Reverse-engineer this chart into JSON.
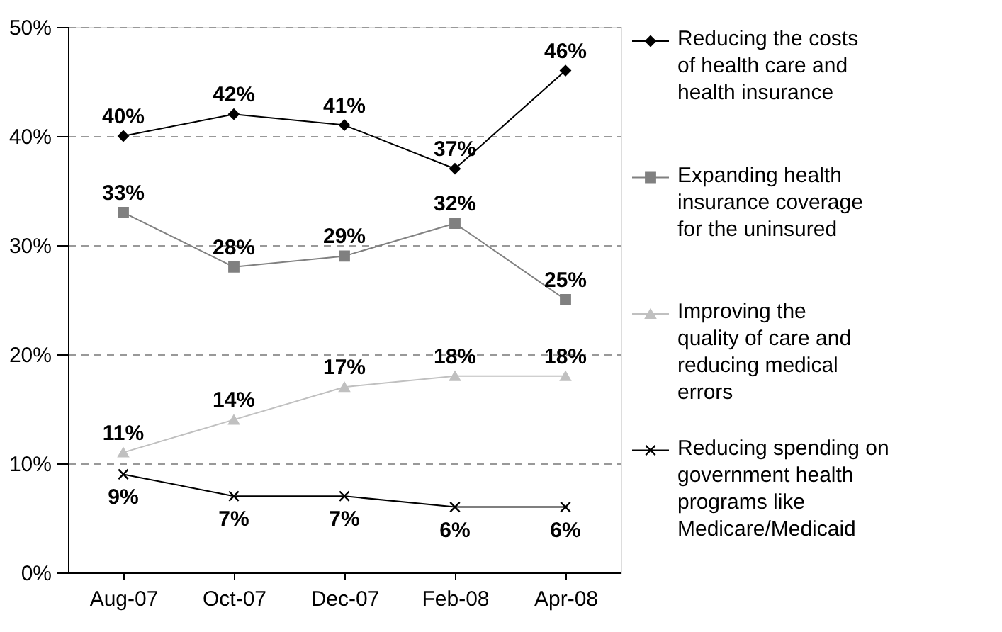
{
  "chart_data": {
    "type": "line",
    "categories": [
      "Aug-07",
      "Oct-07",
      "Dec-07",
      "Feb-08",
      "Apr-08"
    ],
    "series": [
      {
        "name": "Reducing the costs of health care and health insurance",
        "color": "#000000",
        "marker": "diamond",
        "values": [
          40,
          42,
          41,
          37,
          46
        ],
        "value_labels": [
          "40%",
          "42%",
          "41%",
          "37%",
          "46%"
        ]
      },
      {
        "name": "Expanding health insurance coverage for the uninsured",
        "color": "#808080",
        "marker": "square",
        "values": [
          33,
          28,
          29,
          32,
          25
        ],
        "value_labels": [
          "33%",
          "28%",
          "29%",
          "32%",
          "25%"
        ]
      },
      {
        "name": "Improving the quality of care and reducing medical errors",
        "color": "#c0c0c0",
        "marker": "triangle",
        "values": [
          11,
          14,
          17,
          18,
          18
        ],
        "value_labels": [
          "11%",
          "14%",
          "17%",
          "18%",
          "18%"
        ]
      },
      {
        "name": "Reducing spending on government health programs like Medicare/Medicaid",
        "color": "#000000",
        "marker": "cross",
        "values": [
          9,
          7,
          7,
          6,
          6
        ],
        "value_labels": [
          "9%",
          "7%",
          "7%",
          "6%",
          "6%"
        ]
      }
    ],
    "ylim": [
      0,
      50
    ],
    "yticks": [
      {
        "value": 0,
        "label": "0%"
      },
      {
        "value": 10,
        "label": "10%"
      },
      {
        "value": 20,
        "label": "20%"
      },
      {
        "value": 30,
        "label": "30%"
      },
      {
        "value": 40,
        "label": "40%"
      },
      {
        "value": 50,
        "label": "50%"
      }
    ],
    "grid": "y",
    "legend": "right",
    "line_style": "solid"
  }
}
